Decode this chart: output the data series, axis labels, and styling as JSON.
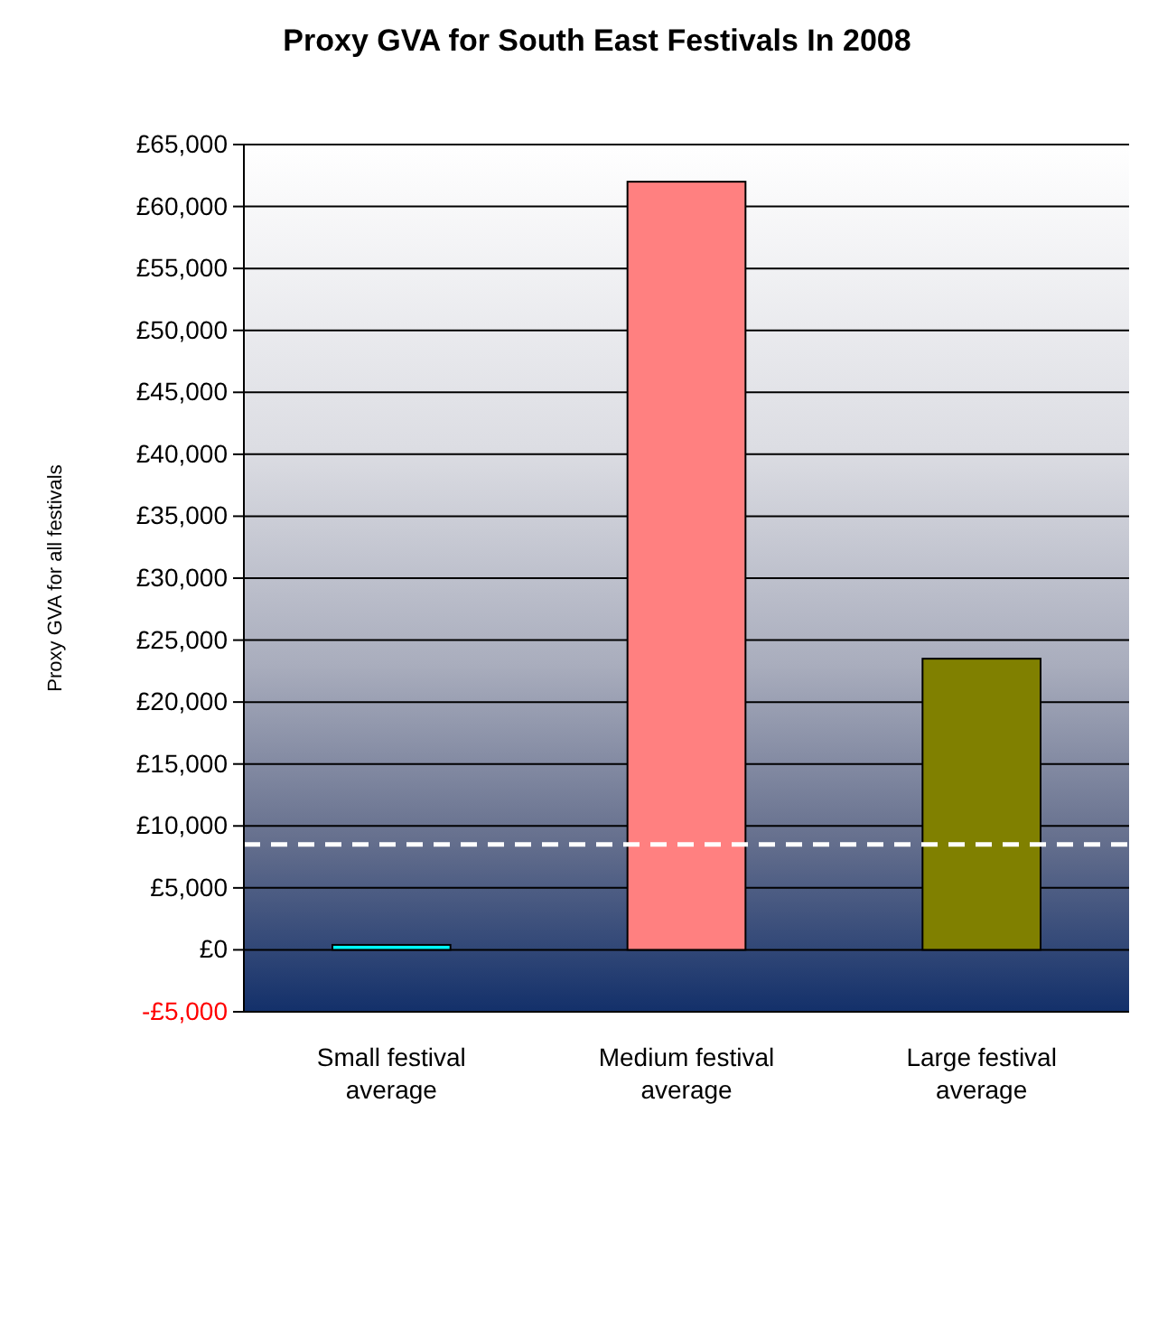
{
  "chart_data": {
    "type": "bar",
    "title": "Proxy GVA for South East Festivals In 2008",
    "ylabel": "Proxy GVA for all festivals",
    "categories": [
      "Small festival average",
      "Medium festival average",
      "Large festival average"
    ],
    "values": [
      400,
      62000,
      23500
    ],
    "colors": [
      "#00ffff",
      "#ff8080",
      "#808000"
    ],
    "ylim": [
      -5000,
      65000
    ],
    "yticks": [
      {
        "value": -5000,
        "label": "-£5,000"
      },
      {
        "value": 0,
        "label": "£0"
      },
      {
        "value": 5000,
        "label": "£5,000"
      },
      {
        "value": 10000,
        "label": "£10,000"
      },
      {
        "value": 15000,
        "label": "£15,000"
      },
      {
        "value": 20000,
        "label": "£20,000"
      },
      {
        "value": 25000,
        "label": "£25,000"
      },
      {
        "value": 30000,
        "label": "£30,000"
      },
      {
        "value": 35000,
        "label": "£35,000"
      },
      {
        "value": 40000,
        "label": "£40,000"
      },
      {
        "value": 45000,
        "label": "£45,000"
      },
      {
        "value": 50000,
        "label": "£50,000"
      },
      {
        "value": 55000,
        "label": "£55,000"
      },
      {
        "value": 60000,
        "label": "£60,000"
      },
      {
        "value": 65000,
        "label": "£65,000"
      }
    ],
    "grid": "y",
    "ref_lines": [
      {
        "axis": "y",
        "value": 8500,
        "color": "#ffffff",
        "line_style": "dashed"
      }
    ]
  }
}
